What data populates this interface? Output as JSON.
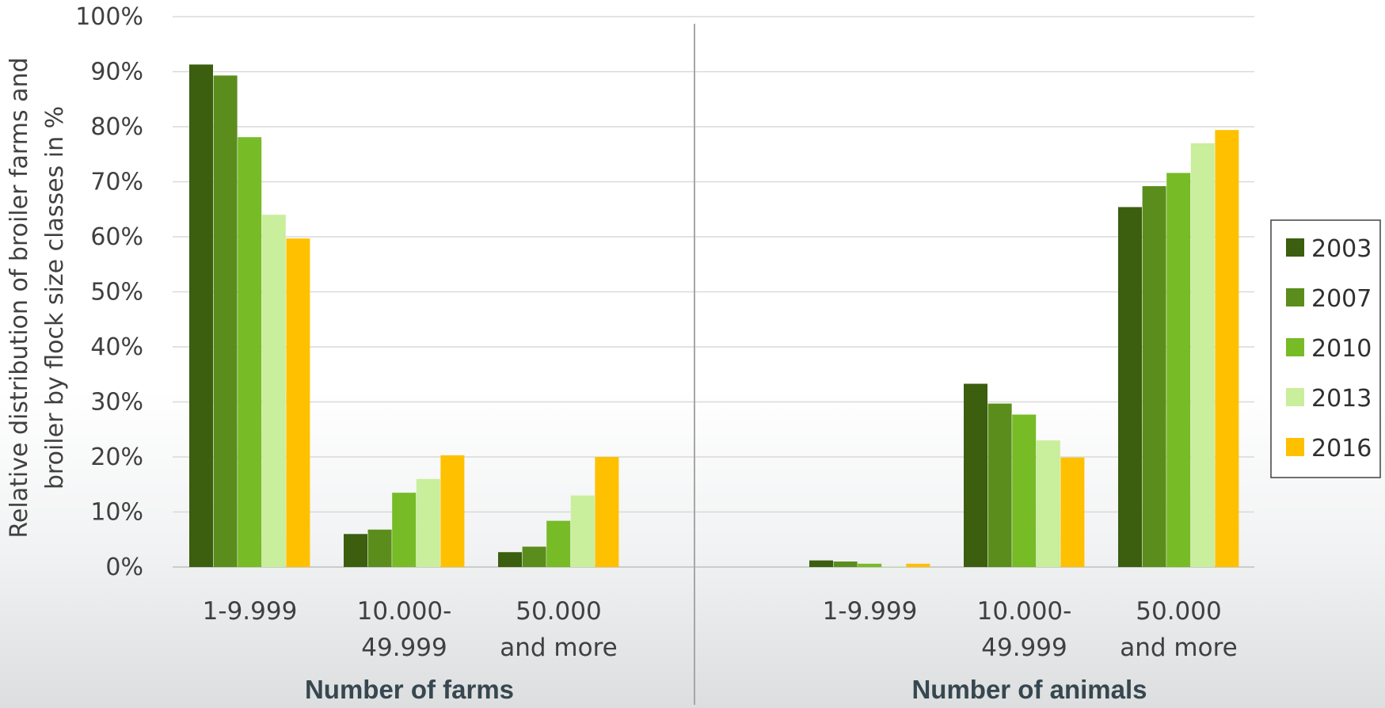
{
  "chart_data": {
    "type": "bar",
    "ylabel": [
      "Relative distribution of broiler farms and",
      "broiler by flock size classes  in %"
    ],
    "ylim": [
      0,
      100
    ],
    "yticks": [
      "0%",
      "10%",
      "20%",
      "30%",
      "40%",
      "50%",
      "60%",
      "70%",
      "80%",
      "90%",
      "100%"
    ],
    "groups": [
      {
        "label": "Number of farms",
        "categories": [
          [
            "1-9.999"
          ],
          [
            "10.000-",
            "49.999"
          ],
          [
            "50.000",
            "and more"
          ]
        ],
        "series": [
          {
            "name": "2003",
            "values": [
              91.3,
              6.0,
              2.7
            ]
          },
          {
            "name": "2007",
            "values": [
              89.3,
              6.8,
              3.7
            ]
          },
          {
            "name": "2010",
            "values": [
              78.1,
              13.5,
              8.4
            ]
          },
          {
            "name": "2013",
            "values": [
              64.0,
              16.0,
              13.0
            ]
          },
          {
            "name": "2016",
            "values": [
              59.7,
              20.3,
              20.0
            ]
          }
        ]
      },
      {
        "label": "Number of animals",
        "categories": [
          [
            "1-9.999"
          ],
          [
            "10.000-",
            "49.999"
          ],
          [
            "50.000",
            "and more"
          ]
        ],
        "series": [
          {
            "name": "2003",
            "values": [
              1.2,
              33.3,
              65.4
            ]
          },
          {
            "name": "2007",
            "values": [
              1.0,
              29.7,
              69.2
            ]
          },
          {
            "name": "2010",
            "values": [
              0.6,
              27.7,
              71.6
            ]
          },
          {
            "name": "2013",
            "values": [
              0.1,
              23.0,
              77.0
            ]
          },
          {
            "name": "2016",
            "values": [
              0.6,
              19.9,
              79.4
            ]
          }
        ]
      }
    ],
    "legend": {
      "position": "right",
      "entries": [
        "2003",
        "2007",
        "2010",
        "2013",
        "2016"
      ]
    },
    "colors": [
      "#3b5e0f",
      "#5b8d1c",
      "#77bb27",
      "#c9ee9c",
      "#ffc000"
    ],
    "grid": true
  }
}
